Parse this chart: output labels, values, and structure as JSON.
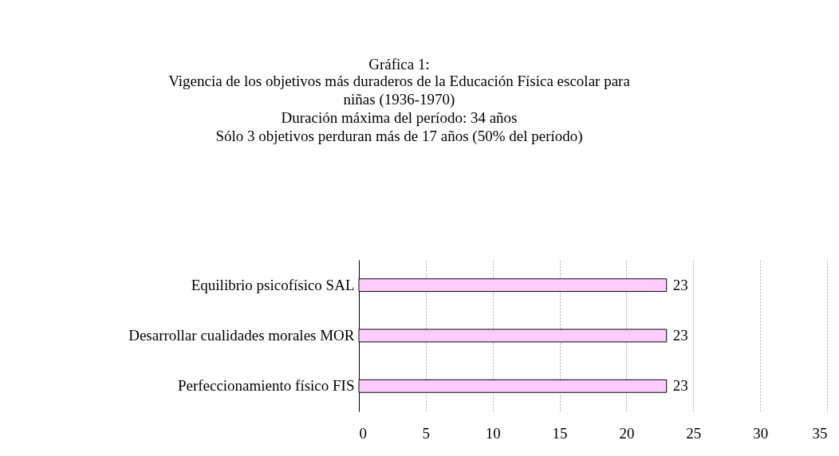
{
  "chart_data": {
    "type": "bar",
    "orientation": "horizontal",
    "title": "Gráfica 1:",
    "subtitle": "Vigencia de los objetivos más duraderos de la Educación Física escolar para niñas (1936-1970)",
    "annotations": [
      "Duración máxima del período: 34 años",
      "Sólo 3 objetivos perduran más de 17 años (50% del período)"
    ],
    "categories": [
      "Equilibrio psicofísico  SAL",
      "Desarrollar cualidades morales  MOR",
      "Perfeccionamiento físico  FIS"
    ],
    "values": [
      23,
      23,
      23
    ],
    "color": "#ffccff",
    "xlim": [
      0,
      35
    ],
    "xticks": [
      0,
      5,
      10,
      15,
      20,
      25,
      30,
      35
    ],
    "grid": "x",
    "data_labels": true
  }
}
